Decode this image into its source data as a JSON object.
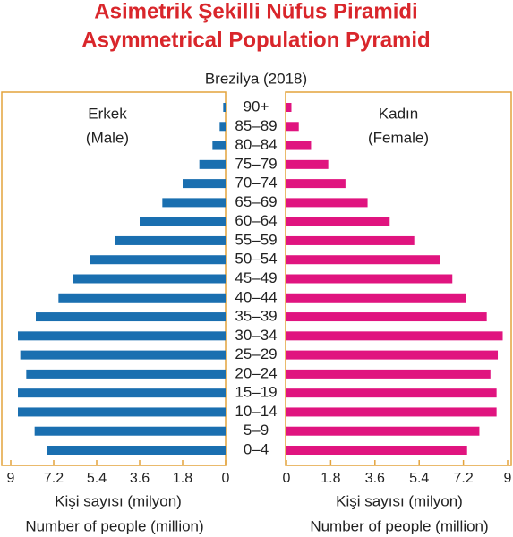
{
  "chart_data": {
    "type": "pyramid",
    "title": "Asimetrik Şekilli Nüfus Piramidi",
    "title_translation": "Asymmetrical Population Pyramid",
    "subtitle": "Brezilya (2018)",
    "xlabel": "Kişi sayısı (milyon)",
    "xlabel_translation": "Number of people (million)",
    "categories": [
      "90+",
      "85–89",
      "80–84",
      "75–79",
      "70–74",
      "65–69",
      "60–64",
      "55–59",
      "50–54",
      "45–49",
      "40–44",
      "35–39",
      "30–34",
      "25–29",
      "20–24",
      "15–19",
      "10–14",
      "5–9",
      "0–4"
    ],
    "series": [
      {
        "name": "Erkek",
        "name_translation": "(Male)",
        "color": "#1a6fb0",
        "values": [
          0.1,
          0.25,
          0.55,
          1.1,
          1.8,
          2.65,
          3.6,
          4.65,
          5.7,
          6.4,
          7.0,
          7.95,
          8.7,
          8.6,
          8.35,
          8.7,
          8.7,
          8.0,
          7.5
        ]
      },
      {
        "name": "Kadın",
        "name_translation": "(Female)",
        "color": "#e0147f",
        "values": [
          0.2,
          0.5,
          1.0,
          1.7,
          2.4,
          3.3,
          4.2,
          5.2,
          6.25,
          6.75,
          7.3,
          8.15,
          8.8,
          8.6,
          8.3,
          8.55,
          8.55,
          7.85,
          7.35
        ]
      }
    ],
    "xlim": [
      0,
      9
    ],
    "xticks": [
      9,
      7.2,
      5.4,
      3.6,
      1.8,
      0
    ]
  }
}
